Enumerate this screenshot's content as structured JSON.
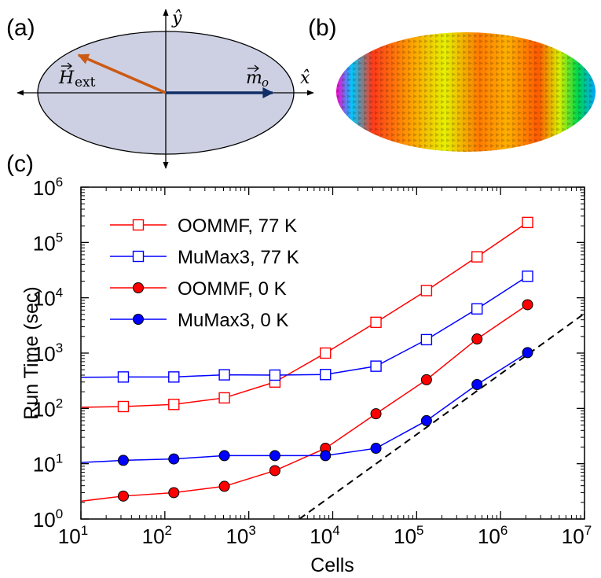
{
  "panels": {
    "a": {
      "label": "(a)",
      "x_axis_symbol": "x̂",
      "y_axis_symbol": "ŷ",
      "field_label_main": "H",
      "field_label_sub": "ext",
      "magnetization_label_main": "m",
      "magnetization_label_sub": "o",
      "colors": {
        "ellipse_fill": "#cdd0e2",
        "field_arrow": "#cc5a14",
        "magnetization_arrow": "#0f2f66"
      }
    },
    "b": {
      "label": "(b)"
    },
    "c": {
      "label": "(c)"
    }
  },
  "chart_data": {
    "type": "line",
    "xlabel": "Cells",
    "ylabel": "Run Time (sec)",
    "x_scale": "log",
    "y_scale": "log",
    "xlim": [
      10,
      10000000
    ],
    "ylim": [
      1,
      1000000
    ],
    "x_ticks": [
      {
        "base": "10",
        "exp": "1"
      },
      {
        "base": "10",
        "exp": "2"
      },
      {
        "base": "10",
        "exp": "3"
      },
      {
        "base": "10",
        "exp": "4"
      },
      {
        "base": "10",
        "exp": "5"
      },
      {
        "base": "10",
        "exp": "6"
      },
      {
        "base": "10",
        "exp": "7"
      }
    ],
    "y_ticks": [
      {
        "base": "10",
        "exp": "0"
      },
      {
        "base": "10",
        "exp": "1"
      },
      {
        "base": "10",
        "exp": "2"
      },
      {
        "base": "10",
        "exp": "3"
      },
      {
        "base": "10",
        "exp": "4"
      },
      {
        "base": "10",
        "exp": "5"
      },
      {
        "base": "10",
        "exp": "6"
      }
    ],
    "legend_position": "top-left",
    "series": [
      {
        "name": "OOMMF, 77 K",
        "color": "#ff0000",
        "marker": "open-square",
        "points": [
          [
            10,
            105
          ],
          [
            32,
            108
          ],
          [
            128,
            118
          ],
          [
            512,
            155
          ],
          [
            2048,
            300
          ],
          [
            8192,
            1000
          ],
          [
            32768,
            3600
          ],
          [
            131072,
            13500
          ],
          [
            524288,
            55000
          ],
          [
            2097152,
            230000
          ]
        ]
      },
      {
        "name": "MuMax3, 77 K",
        "color": "#0000ff",
        "marker": "open-square",
        "points": [
          [
            10,
            365
          ],
          [
            32,
            370
          ],
          [
            128,
            370
          ],
          [
            512,
            405
          ],
          [
            2048,
            400
          ],
          [
            8192,
            410
          ],
          [
            32768,
            580
          ],
          [
            131072,
            1750
          ],
          [
            524288,
            6300
          ],
          [
            2097152,
            24500
          ]
        ]
      },
      {
        "name": "OOMMF, 0 K",
        "color": "#ff0000",
        "marker": "filled-circle",
        "points": [
          [
            10,
            2.1
          ],
          [
            32,
            2.6
          ],
          [
            128,
            3.0
          ],
          [
            512,
            3.9
          ],
          [
            2048,
            7.5
          ],
          [
            8192,
            19
          ],
          [
            32768,
            80
          ],
          [
            131072,
            330
          ],
          [
            524288,
            1800
          ],
          [
            2097152,
            7500
          ]
        ]
      },
      {
        "name": "MuMax3, 0 K",
        "color": "#0000ff",
        "marker": "filled-circle",
        "points": [
          [
            10,
            10.5
          ],
          [
            32,
            11.5
          ],
          [
            128,
            12.2
          ],
          [
            512,
            14
          ],
          [
            2048,
            14
          ],
          [
            8192,
            14
          ],
          [
            32768,
            19
          ],
          [
            131072,
            60
          ],
          [
            524288,
            270
          ],
          [
            2097152,
            1020
          ]
        ]
      }
    ],
    "reference_line": {
      "style": "dashed",
      "color": "#000000",
      "points": [
        [
          4000,
          1
        ],
        [
          10000000,
          5200
        ]
      ]
    }
  }
}
